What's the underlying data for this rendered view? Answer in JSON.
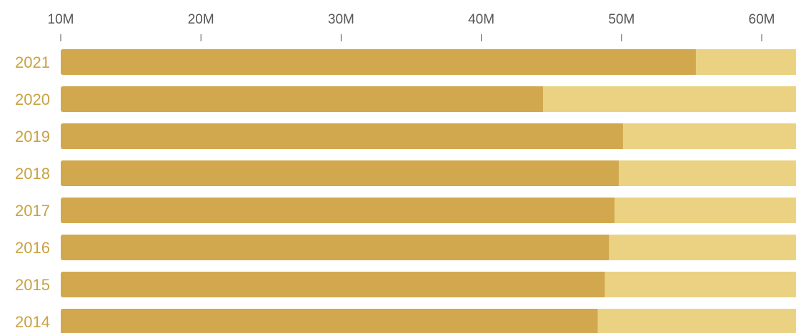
{
  "colors": {
    "bar_value": "#d2a84e",
    "bar_track": "#ebd283",
    "year_label": "#c9a242",
    "tick": "#555555"
  },
  "chart_data": {
    "type": "bar",
    "orientation": "horizontal",
    "x_ticks": [
      "10M",
      "20M",
      "30M",
      "40M",
      "50M",
      "60M"
    ],
    "x_tick_values": [
      10,
      20,
      30,
      40,
      50,
      60
    ],
    "xlim": [
      10,
      62.5
    ],
    "x_unit": "M",
    "categories": [
      "2021",
      "2020",
      "2019",
      "2018",
      "2017",
      "2016",
      "2015",
      "2014"
    ],
    "values": [
      55.3,
      44.4,
      50.1,
      49.8,
      49.5,
      49.1,
      48.8,
      48.3
    ]
  }
}
